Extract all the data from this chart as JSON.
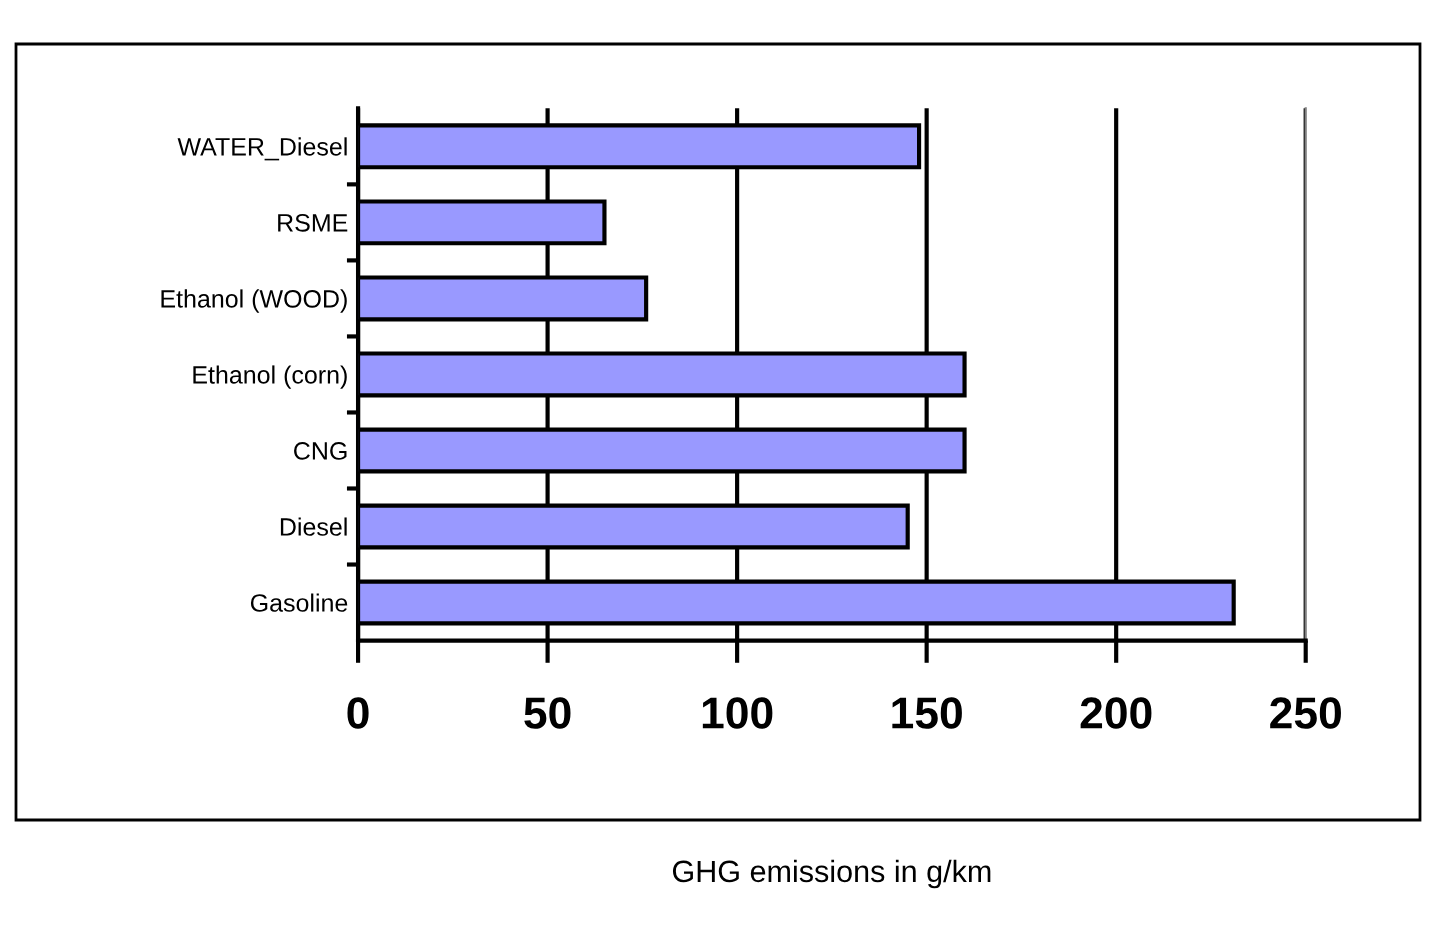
{
  "chart_data": {
    "type": "bar",
    "orientation": "horizontal",
    "xlabel": "GHG emissions in g/km",
    "categories": [
      "WATER_Diesel",
      "RSME",
      "Ethanol (WOOD)",
      "Ethanol (corn)",
      "CNG",
      "Diesel",
      "Gasoline"
    ],
    "values": [
      148,
      65,
      76,
      160,
      160,
      145,
      231
    ],
    "color": "#9999ff",
    "xlim": [
      0,
      250
    ],
    "xticks": [
      0,
      50,
      100,
      150,
      200,
      250
    ],
    "grid": "x",
    "legend": false
  }
}
